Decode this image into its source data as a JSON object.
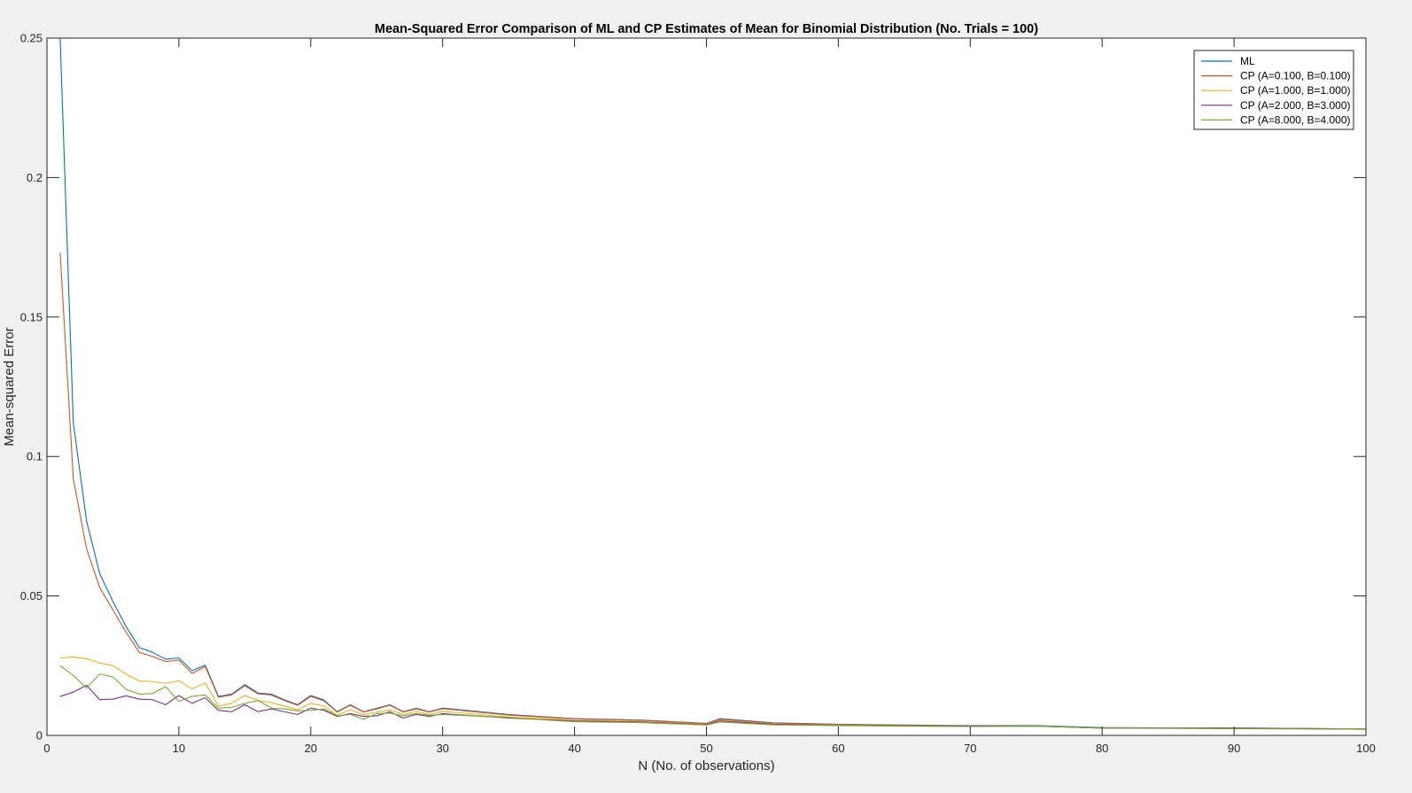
{
  "chart_data": {
    "type": "line",
    "title": "Mean-Squared Error Comparison of ML and CP Estimates of Mean for Binomial Distribution (No. Trials = 100)",
    "xlabel": "N (No. of observations)",
    "ylabel": "Mean-squared Error",
    "xlim": [
      0,
      100
    ],
    "ylim": [
      0,
      0.25
    ],
    "xticks": [
      0,
      10,
      20,
      30,
      40,
      50,
      60,
      70,
      80,
      90,
      100
    ],
    "xtick_labels": [
      "0",
      "10",
      "20",
      "30",
      "40",
      "50",
      "60",
      "70",
      "80",
      "90",
      "100"
    ],
    "yticks": [
      0,
      0.05,
      0.1,
      0.15,
      0.2,
      0.25
    ],
    "ytick_labels": [
      "0",
      "0.05",
      "0.1",
      "0.15",
      "0.2",
      "0.25"
    ],
    "grid": false,
    "legend_position": "top-right",
    "series": [
      {
        "name": "ML",
        "color": "#0072BD",
        "points": [
          [
            1,
            0.25
          ],
          [
            2,
            0.112
          ],
          [
            3,
            0.077
          ],
          [
            4,
            0.058
          ],
          [
            5,
            0.048
          ],
          [
            6,
            0.039
          ],
          [
            7,
            0.0315
          ],
          [
            8,
            0.0298
          ],
          [
            9,
            0.0273
          ],
          [
            10,
            0.0278
          ],
          [
            11,
            0.0232
          ],
          [
            12,
            0.0252
          ],
          [
            13,
            0.014
          ],
          [
            14,
            0.0148
          ],
          [
            15,
            0.0182
          ],
          [
            16,
            0.0152
          ],
          [
            17,
            0.0148
          ],
          [
            18,
            0.0128
          ],
          [
            19,
            0.011
          ],
          [
            20,
            0.0143
          ],
          [
            21,
            0.0127
          ],
          [
            22,
            0.0085
          ],
          [
            23,
            0.011
          ],
          [
            24,
            0.0085
          ],
          [
            25,
            0.0097
          ],
          [
            26,
            0.011
          ],
          [
            27,
            0.0085
          ],
          [
            28,
            0.0097
          ],
          [
            29,
            0.0085
          ],
          [
            30,
            0.0098
          ],
          [
            35,
            0.0075
          ],
          [
            40,
            0.006
          ],
          [
            45,
            0.0055
          ],
          [
            50,
            0.0043
          ],
          [
            51,
            0.006
          ],
          [
            55,
            0.0045
          ],
          [
            60,
            0.004
          ],
          [
            65,
            0.0037
          ],
          [
            70,
            0.0035
          ],
          [
            75,
            0.0035
          ],
          [
            80,
            0.0028
          ],
          [
            85,
            0.0027
          ],
          [
            90,
            0.0027
          ],
          [
            95,
            0.0025
          ],
          [
            100,
            0.0023
          ]
        ]
      },
      {
        "name": "CP (A=0.100, B=0.100)",
        "color": "#D95319",
        "points": [
          [
            1,
            0.173
          ],
          [
            2,
            0.092
          ],
          [
            3,
            0.067
          ],
          [
            4,
            0.053
          ],
          [
            5,
            0.045
          ],
          [
            6,
            0.037
          ],
          [
            7,
            0.0298
          ],
          [
            8,
            0.0283
          ],
          [
            9,
            0.0265
          ],
          [
            10,
            0.027
          ],
          [
            11,
            0.0222
          ],
          [
            12,
            0.0247
          ],
          [
            13,
            0.0137
          ],
          [
            14,
            0.0145
          ],
          [
            15,
            0.0178
          ],
          [
            16,
            0.0149
          ],
          [
            17,
            0.0145
          ],
          [
            18,
            0.0125
          ],
          [
            19,
            0.0108
          ],
          [
            20,
            0.014
          ],
          [
            21,
            0.0124
          ],
          [
            22,
            0.0084
          ],
          [
            23,
            0.0108
          ],
          [
            24,
            0.0084
          ],
          [
            25,
            0.0095
          ],
          [
            26,
            0.0108
          ],
          [
            27,
            0.0084
          ],
          [
            28,
            0.0095
          ],
          [
            29,
            0.0084
          ],
          [
            30,
            0.0096
          ],
          [
            35,
            0.0073
          ],
          [
            40,
            0.0059
          ],
          [
            45,
            0.0054
          ],
          [
            50,
            0.0042
          ],
          [
            51,
            0.0058
          ],
          [
            55,
            0.0044
          ],
          [
            60,
            0.0039
          ],
          [
            65,
            0.0036
          ],
          [
            70,
            0.0034
          ],
          [
            75,
            0.0034
          ],
          [
            80,
            0.0027
          ],
          [
            85,
            0.0027
          ],
          [
            90,
            0.0026
          ],
          [
            95,
            0.0025
          ],
          [
            100,
            0.0023
          ]
        ]
      },
      {
        "name": "CP (A=1.000, B=1.000)",
        "color": "#EDB120",
        "points": [
          [
            1,
            0.0278
          ],
          [
            2,
            0.0281
          ],
          [
            3,
            0.0275
          ],
          [
            4,
            0.026
          ],
          [
            5,
            0.025
          ],
          [
            6,
            0.022
          ],
          [
            7,
            0.0195
          ],
          [
            8,
            0.0193
          ],
          [
            9,
            0.0187
          ],
          [
            10,
            0.0196
          ],
          [
            11,
            0.0167
          ],
          [
            12,
            0.0188
          ],
          [
            13,
            0.0105
          ],
          [
            14,
            0.0115
          ],
          [
            15,
            0.0143
          ],
          [
            16,
            0.0125
          ],
          [
            17,
            0.0118
          ],
          [
            18,
            0.0105
          ],
          [
            19,
            0.0092
          ],
          [
            20,
            0.0115
          ],
          [
            21,
            0.0105
          ],
          [
            22,
            0.0072
          ],
          [
            23,
            0.0092
          ],
          [
            24,
            0.0074
          ],
          [
            25,
            0.0083
          ],
          [
            26,
            0.0092
          ],
          [
            27,
            0.0075
          ],
          [
            28,
            0.0085
          ],
          [
            29,
            0.0075
          ],
          [
            30,
            0.0086
          ],
          [
            35,
            0.0066
          ],
          [
            40,
            0.0054
          ],
          [
            45,
            0.005
          ],
          [
            50,
            0.0039
          ],
          [
            51,
            0.0054
          ],
          [
            55,
            0.0041
          ],
          [
            60,
            0.0037
          ],
          [
            65,
            0.0034
          ],
          [
            70,
            0.0033
          ],
          [
            75,
            0.0033
          ],
          [
            80,
            0.0026
          ],
          [
            85,
            0.0026
          ],
          [
            90,
            0.0025
          ],
          [
            95,
            0.0024
          ],
          [
            100,
            0.0022
          ]
        ]
      },
      {
        "name": "CP (A=2.000, B=3.000)",
        "color": "#7E2F8E",
        "points": [
          [
            1,
            0.014
          ],
          [
            2,
            0.0155
          ],
          [
            3,
            0.018
          ],
          [
            4,
            0.0128
          ],
          [
            5,
            0.013
          ],
          [
            6,
            0.0142
          ],
          [
            7,
            0.013
          ],
          [
            8,
            0.0128
          ],
          [
            9,
            0.011
          ],
          [
            10,
            0.0143
          ],
          [
            11,
            0.0115
          ],
          [
            12,
            0.0135
          ],
          [
            13,
            0.009
          ],
          [
            14,
            0.0085
          ],
          [
            15,
            0.011
          ],
          [
            16,
            0.0085
          ],
          [
            17,
            0.0095
          ],
          [
            18,
            0.0085
          ],
          [
            19,
            0.0075
          ],
          [
            20,
            0.0098
          ],
          [
            21,
            0.009
          ],
          [
            22,
            0.0068
          ],
          [
            23,
            0.0078
          ],
          [
            24,
            0.0068
          ],
          [
            25,
            0.007
          ],
          [
            26,
            0.0085
          ],
          [
            27,
            0.0062
          ],
          [
            28,
            0.0075
          ],
          [
            29,
            0.0068
          ],
          [
            30,
            0.0078
          ],
          [
            35,
            0.0062
          ],
          [
            40,
            0.0052
          ],
          [
            45,
            0.0048
          ],
          [
            50,
            0.0038
          ],
          [
            51,
            0.0052
          ],
          [
            55,
            0.004
          ],
          [
            60,
            0.0036
          ],
          [
            65,
            0.0034
          ],
          [
            70,
            0.0033
          ],
          [
            75,
            0.0033
          ],
          [
            80,
            0.0026
          ],
          [
            85,
            0.0026
          ],
          [
            90,
            0.0025
          ],
          [
            95,
            0.0024
          ],
          [
            100,
            0.0022
          ]
        ]
      },
      {
        "name": "CP (A=8.000, B=4.000)",
        "color": "#77AC30",
        "points": [
          [
            1,
            0.025
          ],
          [
            2,
            0.0215
          ],
          [
            3,
            0.017
          ],
          [
            4,
            0.022
          ],
          [
            5,
            0.021
          ],
          [
            6,
            0.0165
          ],
          [
            7,
            0.0148
          ],
          [
            8,
            0.015
          ],
          [
            9,
            0.0175
          ],
          [
            10,
            0.0122
          ],
          [
            11,
            0.014
          ],
          [
            12,
            0.0145
          ],
          [
            13,
            0.0098
          ],
          [
            14,
            0.01
          ],
          [
            15,
            0.0115
          ],
          [
            16,
            0.0125
          ],
          [
            17,
            0.0098
          ],
          [
            18,
            0.0095
          ],
          [
            19,
            0.0088
          ],
          [
            20,
            0.009
          ],
          [
            21,
            0.0095
          ],
          [
            22,
            0.007
          ],
          [
            23,
            0.0075
          ],
          [
            24,
            0.0058
          ],
          [
            25,
            0.0078
          ],
          [
            26,
            0.008
          ],
          [
            27,
            0.007
          ],
          [
            28,
            0.0078
          ],
          [
            29,
            0.0072
          ],
          [
            30,
            0.0075
          ],
          [
            35,
            0.0064
          ],
          [
            40,
            0.0049
          ],
          [
            45,
            0.0046
          ],
          [
            50,
            0.0037
          ],
          [
            51,
            0.0048
          ],
          [
            55,
            0.0038
          ],
          [
            60,
            0.0035
          ],
          [
            65,
            0.0033
          ],
          [
            70,
            0.0032
          ],
          [
            75,
            0.0033
          ],
          [
            80,
            0.0026
          ],
          [
            85,
            0.0025
          ],
          [
            90,
            0.0024
          ],
          [
            95,
            0.0023
          ],
          [
            100,
            0.0022
          ]
        ]
      }
    ]
  }
}
